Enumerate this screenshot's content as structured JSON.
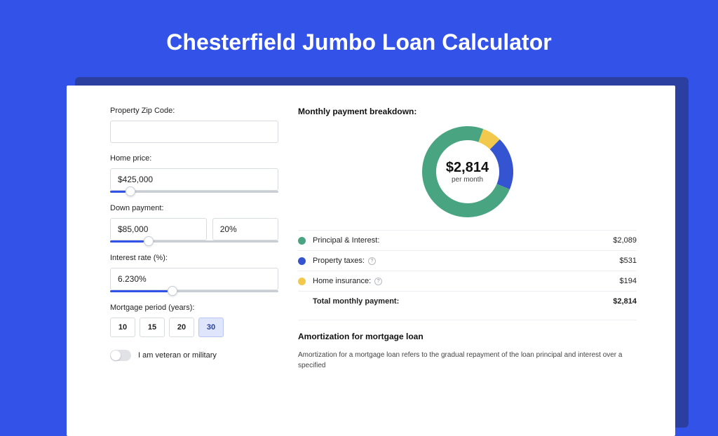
{
  "page": {
    "title": "Chesterfield Jumbo Loan Calculator",
    "background_color": "#3353e8"
  },
  "form": {
    "zip": {
      "label": "Property Zip Code:",
      "value": ""
    },
    "homePrice": {
      "label": "Home price:",
      "value": "$425,000",
      "slider_percent": 9
    },
    "downPayment": {
      "label": "Down payment:",
      "amount": "$85,000",
      "percent": "20%",
      "slider_percent": 20
    },
    "interestRate": {
      "label": "Interest rate (%):",
      "value": "6.230%",
      "slider_percent": 34
    },
    "mortgagePeriod": {
      "label": "Mortgage period (years):",
      "options": [
        "10",
        "15",
        "20",
        "30"
      ],
      "selected": "30"
    },
    "veteran": {
      "label": "I am veteran or military",
      "value": false
    }
  },
  "breakdown": {
    "title": "Monthly payment breakdown:",
    "donut": {
      "value": "$2,814",
      "label": "per month",
      "segments": [
        {
          "name": "principal_interest",
          "value": 2089,
          "color": "#49a581",
          "percent": 74.24
        },
        {
          "name": "property_taxes",
          "value": 531,
          "color": "#3554d1",
          "percent": 18.87
        },
        {
          "name": "home_insurance",
          "value": 194,
          "color": "#f2c94c",
          "percent": 6.89
        }
      ],
      "stroke_width": 20,
      "radius": 55,
      "size": 130
    },
    "rows": [
      {
        "label": "Principal & Interest:",
        "value": "$2,089",
        "color": "#49a581",
        "info": false
      },
      {
        "label": "Property taxes:",
        "value": "$531",
        "color": "#3554d1",
        "info": true
      },
      {
        "label": "Home insurance:",
        "value": "$194",
        "color": "#f2c94c",
        "info": true
      }
    ],
    "total": {
      "label": "Total monthly payment:",
      "value": "$2,814"
    }
  },
  "amortization": {
    "title": "Amortization for mortgage loan",
    "text": "Amortization for a mortgage loan refers to the gradual repayment of the loan principal and interest over a specified"
  }
}
